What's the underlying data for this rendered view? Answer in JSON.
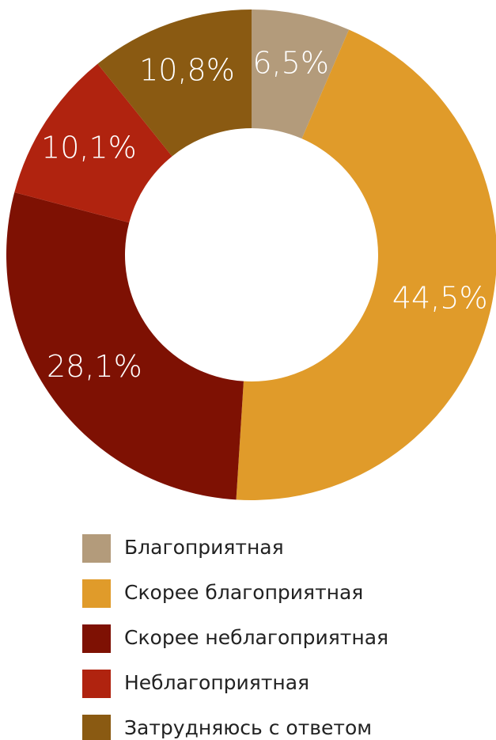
{
  "chart_data": {
    "type": "donut",
    "categories": [
      "Благоприятная",
      "Скорее благоприятная",
      "Скорее неблагоприятная",
      "Неблагоприятная",
      "Затрудняюсь с ответом"
    ],
    "values": [
      6.5,
      44.5,
      28.1,
      10.1,
      10.8
    ],
    "value_labels": [
      "6,5%",
      "44,5%",
      "28,1%",
      "10,1%",
      "10,8%"
    ],
    "colors": [
      "#b39b7b",
      "#e09b2a",
      "#7e1103",
      "#b0230f",
      "#8a5a12"
    ],
    "legend": "bottom"
  }
}
